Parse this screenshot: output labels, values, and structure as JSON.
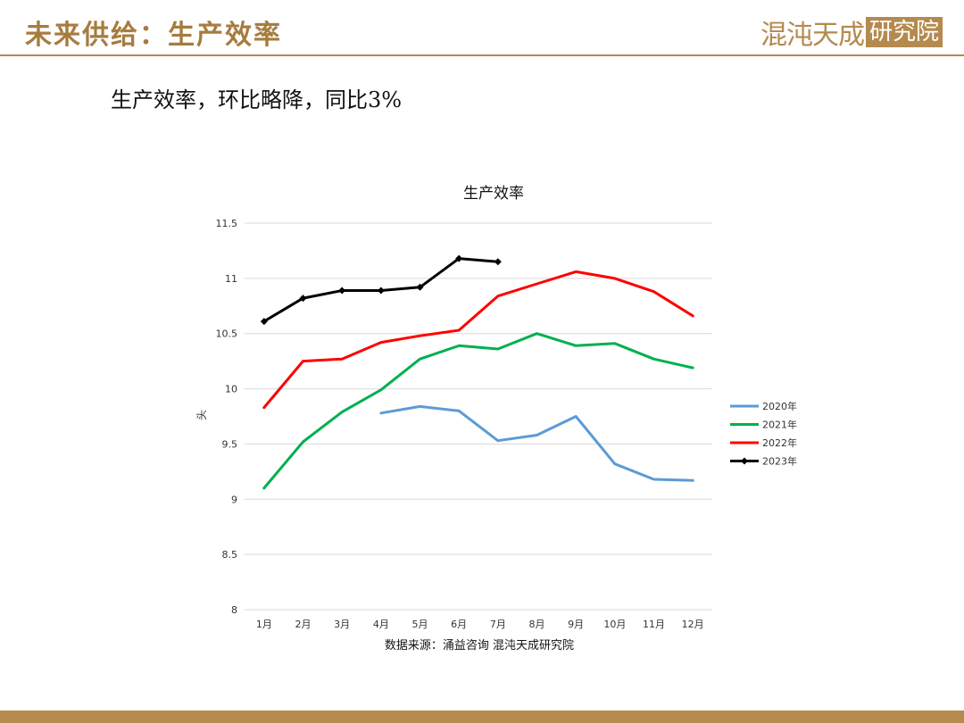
{
  "header": {
    "title": "未来供给：生产效率",
    "brand_name": "混沌天成",
    "brand_box": "研究院"
  },
  "subtitle": "生产效率，环比略降，同比3%",
  "colors": {
    "accent": "#b48a4e",
    "s2020": "#5b9bd5",
    "s2021": "#00b050",
    "s2022": "#ff0000",
    "s2023": "#000000"
  },
  "chart_data": {
    "type": "line",
    "title": "生产效率",
    "ylabel": "头",
    "xlabel": "",
    "ylim": [
      8,
      11.5
    ],
    "yticks": [
      "8",
      "8.5",
      "9",
      "9.5",
      "10",
      "10.5",
      "11",
      "11.5"
    ],
    "categories": [
      "1月",
      "2月",
      "3月",
      "4月",
      "5月",
      "6月",
      "7月",
      "8月",
      "9月",
      "10月",
      "11月",
      "12月"
    ],
    "series": [
      {
        "name": "2020年",
        "color": "#5b9bd5",
        "marker": "none",
        "values": [
          null,
          null,
          null,
          9.78,
          9.84,
          9.8,
          9.53,
          9.58,
          9.75,
          9.32,
          9.18,
          9.17
        ]
      },
      {
        "name": "2021年",
        "color": "#00b050",
        "marker": "none",
        "values": [
          9.1,
          9.52,
          9.79,
          9.99,
          10.27,
          10.39,
          10.36,
          10.5,
          10.39,
          10.41,
          10.27,
          10.19
        ]
      },
      {
        "name": "2022年",
        "color": "#ff0000",
        "marker": "none",
        "values": [
          9.83,
          10.25,
          10.27,
          10.42,
          10.48,
          10.53,
          10.84,
          10.95,
          11.06,
          11.0,
          10.88,
          10.66
        ]
      },
      {
        "name": "2023年",
        "color": "#000000",
        "marker": "diamond",
        "values": [
          10.61,
          10.82,
          10.89,
          10.89,
          10.92,
          11.18,
          11.15,
          null,
          null,
          null,
          null,
          null
        ]
      }
    ],
    "grid": true,
    "legend": "right",
    "source": "数据来源：涌益咨询 混沌天成研究院"
  }
}
